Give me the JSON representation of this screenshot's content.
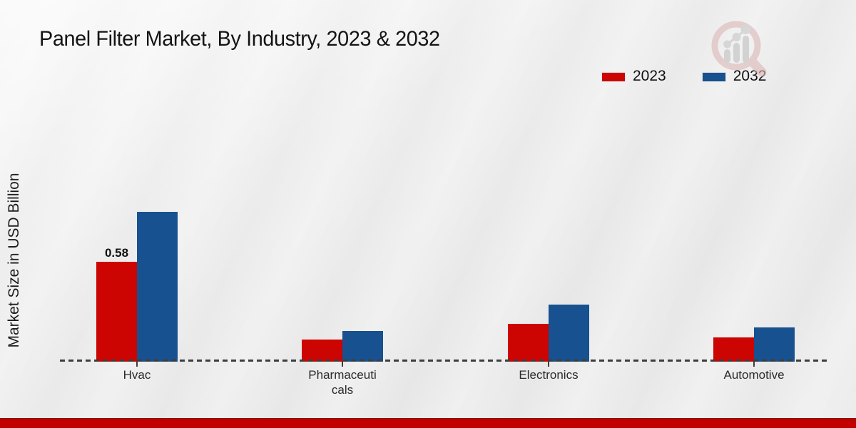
{
  "title": "Panel Filter Market, By Industry, 2023 & 2032",
  "ylabel": "Market Size in USD Billion",
  "legend": {
    "items": [
      {
        "label": "2023",
        "color": "#cc0402"
      },
      {
        "label": "2032",
        "color": "#17518f"
      }
    ]
  },
  "footer_accent_color": "#c20000",
  "chart_data": {
    "type": "bar",
    "title": "Panel Filter Market, By Industry, 2023 & 2032",
    "xlabel": "",
    "ylabel": "Market Size in USD Billion",
    "unit": "USD Billion",
    "categories": [
      {
        "key": "hvac",
        "label": "Hvac",
        "display": "Hvac"
      },
      {
        "key": "pharmaceuticals",
        "label": "Pharmaceuticals",
        "display": "Pharmaceuti\ncals"
      },
      {
        "key": "electronics",
        "label": "Electronics",
        "display": "Electronics"
      },
      {
        "key": "automotive",
        "label": "Automotive",
        "display": "Automotive"
      }
    ],
    "series": [
      {
        "name": "2023",
        "color": "#cc0402",
        "values": [
          0.58,
          0.13,
          0.22,
          0.14
        ]
      },
      {
        "name": "2032",
        "color": "#17518f",
        "values": [
          0.87,
          0.18,
          0.33,
          0.2
        ]
      }
    ],
    "bar_labels": [
      {
        "series_index": 0,
        "category_index": 0,
        "text": "0.58"
      }
    ],
    "ylim": [
      0,
      0.95
    ],
    "grid": false,
    "legend_position": "top-right",
    "baseline_style": "dashed"
  }
}
